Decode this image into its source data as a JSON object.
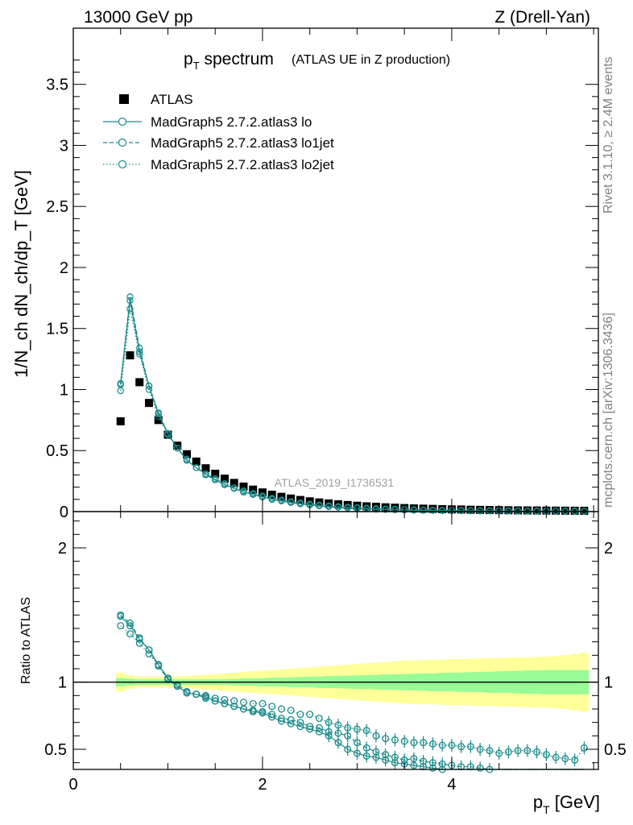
{
  "header": {
    "energy": "13000 GeV pp",
    "process": "Z (Drell-Yan)"
  },
  "side_labels": {
    "rivet": "Rivet 3.1.10, ≥ 2.4M events",
    "mcplots": "mcplots.cern.ch [arXiv:1306.3436]"
  },
  "chart_data": [
    {
      "type": "scatter",
      "panel": "main",
      "title": "p_T spectrum",
      "title_main": "p",
      "title_sub": "T",
      "title_rest": " spectrum",
      "subtitle": "(ATLAS UE in Z production)",
      "ylabel": "1/N_ch dN_ch/dp_T [GeV]",
      "ylim": [
        0,
        3.96
      ],
      "xlim": [
        0,
        5.55
      ],
      "yticks": [
        0,
        0.5,
        1,
        1.5,
        2,
        2.5,
        3,
        3.5
      ],
      "ytick_labels": [
        "0",
        "0.5",
        "1",
        "1.5",
        "2",
        "2.5",
        "3",
        "3.5"
      ],
      "watermark": "ATLAS_2019_I1736531",
      "legend_position": "top-left",
      "x": [
        0.5,
        0.6,
        0.7,
        0.8,
        0.9,
        1.0,
        1.1,
        1.2,
        1.3,
        1.4,
        1.5,
        1.6,
        1.7,
        1.8,
        1.9,
        2.0,
        2.1,
        2.2,
        2.3,
        2.4,
        2.5,
        2.6,
        2.7,
        2.8,
        2.9,
        3.0,
        3.1,
        3.2,
        3.3,
        3.4,
        3.5,
        3.6,
        3.7,
        3.8,
        3.9,
        4.0,
        4.1,
        4.2,
        4.3,
        4.4,
        4.5,
        4.6,
        4.7,
        4.8,
        4.9,
        5.0,
        5.1,
        5.2,
        5.3,
        5.4
      ],
      "series": [
        {
          "name": "ATLAS",
          "style": "data",
          "color": "#000000",
          "values": [
            0.74,
            1.28,
            1.06,
            0.89,
            0.75,
            0.63,
            0.54,
            0.47,
            0.41,
            0.355,
            0.31,
            0.27,
            0.235,
            0.205,
            0.18,
            0.157,
            0.138,
            0.121,
            0.107,
            0.095,
            0.084,
            0.075,
            0.067,
            0.06,
            0.054,
            0.048,
            0.043,
            0.039,
            0.035,
            0.032,
            0.029,
            0.026,
            0.024,
            0.022,
            0.02,
            0.018,
            0.017,
            0.015,
            0.014,
            0.013,
            0.012,
            0.011,
            0.01,
            0.0095,
            0.009,
            0.0085,
            0.008,
            0.0075,
            0.007,
            0.0065
          ]
        },
        {
          "name": "MadGraph5 2.7.2.atlas3 lo",
          "style": "solid",
          "color": "#1a8a8a",
          "values": [
            1.05,
            1.73,
            1.31,
            1.03,
            0.8,
            0.64,
            0.52,
            0.42,
            0.36,
            0.31,
            0.26,
            0.22,
            0.19,
            0.16,
            0.14,
            0.12,
            0.1,
            0.087,
            0.074,
            0.063,
            0.054,
            0.047,
            0.04,
            0.035,
            0.03,
            0.026,
            0.022,
            0.019,
            0.017,
            0.015,
            0.013,
            0.011,
            0.01,
            0.009,
            0.008,
            0.007,
            0.006,
            0.0055,
            0.005,
            0.0045,
            0.004,
            0.0035,
            0.003,
            0.0028,
            0.0026,
            0.0024,
            0.0022,
            0.002,
            0.0018,
            0.0017
          ]
        },
        {
          "name": "MadGraph5 2.7.2.atlas3 lo1jet",
          "style": "dashed",
          "color": "#1a8a8a",
          "values": [
            1.04,
            1.76,
            1.34,
            1.03,
            0.81,
            0.64,
            0.52,
            0.42,
            0.36,
            0.3,
            0.26,
            0.22,
            0.19,
            0.16,
            0.14,
            0.12,
            0.1,
            0.088,
            0.076,
            0.065,
            0.056,
            0.049,
            0.042,
            0.037,
            0.032,
            0.028,
            0.024,
            0.021,
            0.018,
            0.016,
            0.014,
            0.012,
            0.011,
            0.01,
            0.009,
            0.008,
            0.007,
            0.0065,
            0.006,
            0.0055,
            0.005,
            0.0045,
            0.004,
            0.0038,
            0.0036,
            0.0034,
            0.0032,
            0.003,
            0.0028,
            0.0027
          ]
        },
        {
          "name": "MadGraph5 2.7.2.atlas3 lo2jet",
          "style": "dotted",
          "color": "#1a8a8a",
          "values": [
            0.99,
            1.66,
            1.29,
            1.0,
            0.78,
            0.63,
            0.52,
            0.43,
            0.36,
            0.31,
            0.27,
            0.23,
            0.195,
            0.17,
            0.15,
            0.13,
            0.11,
            0.095,
            0.082,
            0.071,
            0.062,
            0.054,
            0.047,
            0.042,
            0.037,
            0.033,
            0.029,
            0.025,
            0.022,
            0.02,
            0.018,
            0.016,
            0.014,
            0.013,
            0.012,
            0.011,
            0.01,
            0.009,
            0.0085,
            0.008,
            0.0075,
            0.007,
            0.0065,
            0.006,
            0.0058,
            0.0056,
            0.0054,
            0.0052,
            0.005,
            0.0048
          ]
        }
      ]
    },
    {
      "type": "scatter",
      "panel": "ratio",
      "ylabel": "Ratio to ATLAS",
      "xlabel": "p_T [GeV]",
      "xlabel_main": "p",
      "xlabel_sub": "T",
      "xlabel_rest": " [GeV]",
      "xlim": [
        0,
        5.55
      ],
      "ylim": [
        0.35,
        2.27
      ],
      "xticks": [
        0,
        2,
        4
      ],
      "xtick_labels": [
        "0",
        "2",
        "4"
      ],
      "yticks": [
        0.5,
        1,
        2
      ],
      "ytick_labels": [
        "0.5",
        "1",
        "2"
      ],
      "reference_line": 1.0,
      "band_colors": {
        "stat": "#98fb98",
        "total": "#ffff99"
      },
      "band_inner": [
        0.03,
        0.025,
        0.02,
        0.02,
        0.02,
        0.02,
        0.02,
        0.02,
        0.02,
        0.02,
        0.02,
        0.022,
        0.024,
        0.026,
        0.028,
        0.03,
        0.032,
        0.034,
        0.036,
        0.038,
        0.04,
        0.042,
        0.044,
        0.046,
        0.048,
        0.05,
        0.052,
        0.054,
        0.056,
        0.058,
        0.06,
        0.062,
        0.064,
        0.066,
        0.068,
        0.07,
        0.072,
        0.074,
        0.076,
        0.078,
        0.08,
        0.082,
        0.084,
        0.086,
        0.088,
        0.09,
        0.09,
        0.09,
        0.09,
        0.09
      ],
      "band_outer": [
        0.07,
        0.05,
        0.04,
        0.04,
        0.04,
        0.04,
        0.04,
        0.045,
        0.05,
        0.055,
        0.06,
        0.065,
        0.07,
        0.075,
        0.08,
        0.085,
        0.09,
        0.095,
        0.1,
        0.105,
        0.11,
        0.115,
        0.12,
        0.125,
        0.13,
        0.135,
        0.14,
        0.145,
        0.15,
        0.155,
        0.16,
        0.162,
        0.164,
        0.166,
        0.168,
        0.17,
        0.172,
        0.174,
        0.176,
        0.178,
        0.18,
        0.182,
        0.184,
        0.186,
        0.188,
        0.19,
        0.195,
        0.2,
        0.21,
        0.22
      ],
      "series": [
        {
          "name": "MadGraph5 2.7.2.atlas3 lo",
          "style": "solid",
          "color": "#1a8a8a",
          "values": [
            1.49,
            1.42,
            1.32,
            1.24,
            1.13,
            1.03,
            0.97,
            0.92,
            0.91,
            0.89,
            0.86,
            0.84,
            0.82,
            0.8,
            0.78,
            0.77,
            0.74,
            0.71,
            0.69,
            0.67,
            0.65,
            0.63,
            0.6,
            0.55,
            0.5,
            0.47,
            0.45,
            0.44,
            0.42,
            0.4,
            0.39,
            0.38,
            0.37,
            0.36,
            0.35,
            0.34,
            0.33,
            0.33,
            0.32,
            0.32,
            0.31,
            0.31,
            0.3,
            0.3,
            0.29,
            0.29,
            0.28,
            0.28,
            0.27,
            0.27
          ]
        },
        {
          "name": "MadGraph5 2.7.2.atlas3 lo1jet",
          "style": "dashed",
          "color": "#1a8a8a",
          "values": [
            1.5,
            1.44,
            1.33,
            1.24,
            1.12,
            1.02,
            0.97,
            0.92,
            0.91,
            0.88,
            0.86,
            0.84,
            0.82,
            0.8,
            0.79,
            0.78,
            0.76,
            0.73,
            0.72,
            0.7,
            0.67,
            0.66,
            0.63,
            0.62,
            0.6,
            0.55,
            0.51,
            0.48,
            0.46,
            0.44,
            0.42,
            0.43,
            0.41,
            0.4,
            0.39,
            0.38,
            0.37,
            0.37,
            0.36,
            0.35,
            0.34,
            0.34,
            0.33,
            0.33,
            0.32,
            0.32,
            0.31,
            0.31,
            0.3,
            0.3
          ]
        },
        {
          "name": "MadGraph5 2.7.2.atlas3 lo2jet",
          "style": "dotted",
          "color": "#1a8a8a",
          "values": [
            1.42,
            1.36,
            1.29,
            1.21,
            1.13,
            1.03,
            0.98,
            0.93,
            0.91,
            0.9,
            0.88,
            0.87,
            0.86,
            0.85,
            0.84,
            0.84,
            0.82,
            0.8,
            0.79,
            0.76,
            0.76,
            0.73,
            0.7,
            0.68,
            0.66,
            0.65,
            0.64,
            0.6,
            0.58,
            0.57,
            0.56,
            0.55,
            0.55,
            0.54,
            0.53,
            0.53,
            0.52,
            0.52,
            0.5,
            0.49,
            0.47,
            0.48,
            0.49,
            0.49,
            0.48,
            0.46,
            0.44,
            0.43,
            0.42,
            0.51
          ]
        }
      ]
    }
  ]
}
